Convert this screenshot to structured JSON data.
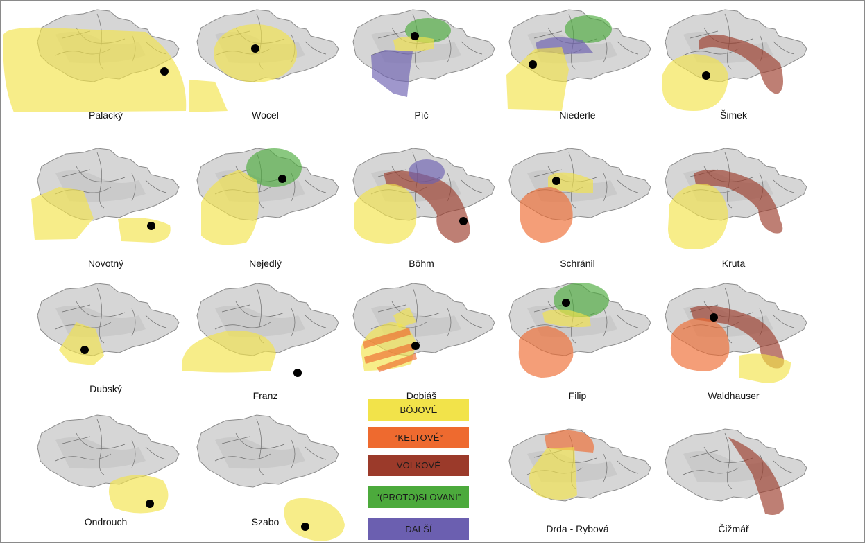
{
  "colors": {
    "bojove": "#f2e34a",
    "keltove": "#ee6a2f",
    "volkove": "#9b3a2a",
    "protoslovani": "#4caa3c",
    "dalsi": "#6b5fb0"
  },
  "legend": [
    {
      "key": "bojove",
      "label": "BÓJOVÉ"
    },
    {
      "key": "keltove",
      "label": "“KELTOVÉ”"
    },
    {
      "key": "volkove",
      "label": "VOLKOVÉ"
    },
    {
      "key": "protoslovani",
      "label": "“(PROTO)SLOVANI”"
    },
    {
      "key": "dalsi",
      "label": "DALŠÍ"
    }
  ],
  "maps": [
    {
      "label": "Palacký"
    },
    {
      "label": "Wocel"
    },
    {
      "label": "Píč"
    },
    {
      "label": "Niederle"
    },
    {
      "label": "Šimek"
    },
    {
      "label": "Novotný"
    },
    {
      "label": "Nejedlý"
    },
    {
      "label": "Böhm"
    },
    {
      "label": "Schránil"
    },
    {
      "label": "Kruta"
    },
    {
      "label": "Dubský"
    },
    {
      "label": "Franz"
    },
    {
      "label": "Dobiáš"
    },
    {
      "label": "Filip"
    },
    {
      "label": "Waldhauser"
    },
    {
      "label": "Ondrouch"
    },
    {
      "label": "Szabo"
    },
    {
      "label": "Drda - Rybová"
    },
    {
      "label": "Čižmář"
    }
  ]
}
